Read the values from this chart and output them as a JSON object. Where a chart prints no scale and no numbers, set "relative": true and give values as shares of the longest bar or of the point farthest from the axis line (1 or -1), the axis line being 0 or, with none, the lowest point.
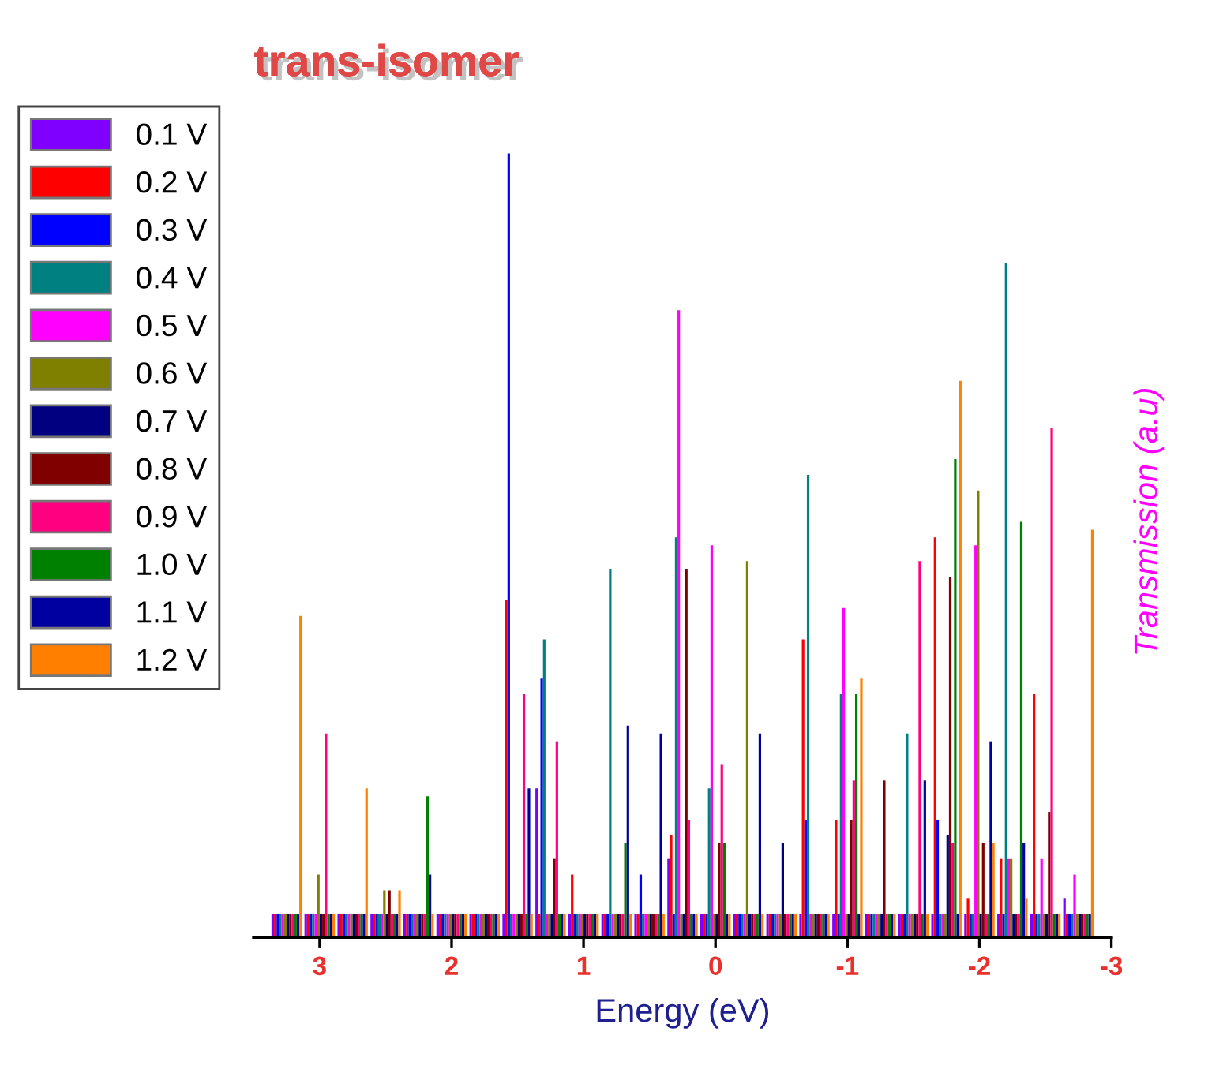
{
  "chart_data": {
    "type": "bar",
    "title": "trans-isomer",
    "xlabel": "Energy (eV)",
    "ylabel": "Transmission (a.u)",
    "relative": true,
    "legend": "top left",
    "x": [
      3.25,
      3.0,
      2.75,
      2.5,
      2.25,
      2.0,
      1.75,
      1.5,
      1.25,
      1.0,
      0.75,
      0.5,
      0.25,
      0.0,
      -0.25,
      -0.5,
      -0.75,
      -1.0,
      -1.25,
      -1.5,
      -1.75,
      -2.0,
      -2.25,
      -2.5,
      -2.75
    ],
    "xlim": [
      3.5,
      -3.0
    ],
    "xticks": [
      3,
      2,
      1,
      0,
      -1,
      -2,
      -3
    ],
    "series": [
      {
        "name": "0.1 V",
        "color": "#8000ff",
        "values": [
          0.03,
          0.03,
          0.03,
          0.03,
          0.03,
          0.03,
          0.03,
          0.03,
          0.19,
          0.03,
          0.03,
          0.03,
          0.1,
          0.03,
          0.03,
          0.03,
          0.03,
          0.03,
          0.03,
          0.03,
          0.03,
          0.03,
          0.03,
          0.03,
          0.05
        ]
      },
      {
        "name": "0.2 V",
        "color": "#ff0000",
        "values": [
          0.03,
          0.03,
          0.03,
          0.03,
          0.03,
          0.03,
          0.03,
          0.43,
          0.03,
          0.08,
          0.03,
          0.03,
          0.13,
          0.03,
          0.03,
          0.03,
          0.38,
          0.15,
          0.03,
          0.03,
          0.51,
          0.05,
          0.1,
          0.31,
          0.03
        ]
      },
      {
        "name": "0.3 V",
        "color": "#0000ff",
        "values": [
          0.03,
          0.03,
          0.03,
          0.03,
          0.03,
          0.03,
          0.03,
          1.0,
          0.33,
          0.03,
          0.03,
          0.08,
          0.03,
          0.03,
          0.03,
          0.03,
          0.15,
          0.03,
          0.03,
          0.03,
          0.15,
          0.03,
          0.03,
          0.03,
          0.03
        ]
      },
      {
        "name": "0.4 V",
        "color": "#008080",
        "values": [
          0.03,
          0.03,
          0.03,
          0.03,
          0.03,
          0.03,
          0.03,
          0.03,
          0.38,
          0.03,
          0.47,
          0.03,
          0.51,
          0.19,
          0.03,
          0.03,
          0.59,
          0.31,
          0.03,
          0.26,
          0.03,
          0.03,
          0.86,
          0.03,
          0.03
        ]
      },
      {
        "name": "0.5 V",
        "color": "#ff00ff",
        "values": [
          0.03,
          0.03,
          0.03,
          0.03,
          0.03,
          0.03,
          0.03,
          0.03,
          0.03,
          0.03,
          0.03,
          0.03,
          0.8,
          0.5,
          0.03,
          0.03,
          0.03,
          0.42,
          0.03,
          0.03,
          0.03,
          0.5,
          0.1,
          0.1,
          0.08
        ]
      },
      {
        "name": "0.6 V",
        "color": "#808000",
        "values": [
          0.03,
          0.08,
          0.03,
          0.06,
          0.03,
          0.03,
          0.03,
          0.03,
          0.03,
          0.03,
          0.03,
          0.03,
          0.03,
          0.03,
          0.48,
          0.03,
          0.03,
          0.03,
          0.03,
          0.03,
          0.03,
          0.57,
          0.1,
          0.03,
          0.03
        ]
      },
      {
        "name": "0.7 V",
        "color": "#000080",
        "values": [
          0.03,
          0.03,
          0.03,
          0.03,
          0.03,
          0.03,
          0.03,
          0.03,
          0.03,
          0.03,
          0.03,
          0.03,
          0.03,
          0.03,
          0.03,
          0.12,
          0.03,
          0.03,
          0.03,
          0.03,
          0.13,
          0.03,
          0.03,
          0.03,
          0.03
        ]
      },
      {
        "name": "0.8 V",
        "color": "#800000",
        "values": [
          0.03,
          0.03,
          0.03,
          0.06,
          0.03,
          0.03,
          0.03,
          0.03,
          0.1,
          0.03,
          0.03,
          0.03,
          0.47,
          0.12,
          0.03,
          0.03,
          0.03,
          0.15,
          0.2,
          0.03,
          0.46,
          0.12,
          0.03,
          0.16,
          0.03
        ]
      },
      {
        "name": "0.9 V",
        "color": "#ff0080",
        "values": [
          0.03,
          0.26,
          0.03,
          0.03,
          0.03,
          0.03,
          0.03,
          0.31,
          0.25,
          0.03,
          0.03,
          0.03,
          0.15,
          0.22,
          0.03,
          0.03,
          0.03,
          0.2,
          0.03,
          0.48,
          0.12,
          0.03,
          0.03,
          0.65,
          0.03
        ]
      },
      {
        "name": "1.0 V",
        "color": "#008000",
        "values": [
          0.03,
          0.03,
          0.03,
          0.03,
          0.18,
          0.03,
          0.03,
          0.03,
          0.03,
          0.03,
          0.12,
          0.03,
          0.03,
          0.12,
          0.03,
          0.03,
          0.03,
          0.31,
          0.03,
          0.03,
          0.61,
          0.03,
          0.53,
          0.03,
          0.03
        ]
      },
      {
        "name": "1.1 V",
        "color": "#0000a0",
        "values": [
          0.03,
          0.03,
          0.03,
          0.03,
          0.08,
          0.03,
          0.03,
          0.19,
          0.03,
          0.03,
          0.27,
          0.26,
          0.03,
          0.03,
          0.26,
          0.03,
          0.03,
          0.03,
          0.03,
          0.2,
          0.03,
          0.25,
          0.12,
          0.03,
          0.03
        ]
      },
      {
        "name": "1.2 V",
        "color": "#ff8000",
        "values": [
          0.41,
          0.03,
          0.19,
          0.06,
          0.03,
          0.03,
          0.03,
          0.03,
          0.03,
          0.03,
          0.03,
          0.03,
          0.03,
          0.03,
          0.03,
          0.03,
          0.03,
          0.33,
          0.03,
          0.03,
          0.71,
          0.12,
          0.05,
          0.03,
          0.52
        ]
      }
    ]
  }
}
